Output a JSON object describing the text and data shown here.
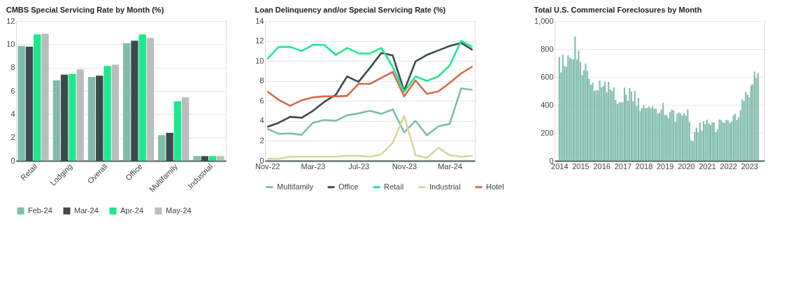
{
  "chart_data": [
    {
      "type": "bar",
      "title": "CMBS Special Servicing Rate by Month (%)",
      "categories": [
        "Retail",
        "Lodging",
        "Overall",
        "Office",
        "Multifamily",
        "Industrial"
      ],
      "series": [
        {
          "name": "Feb-24",
          "color": "#7fbcab",
          "values": [
            9.85,
            6.9,
            7.2,
            10.1,
            2.2,
            0.4
          ]
        },
        {
          "name": "Mar-24",
          "color": "#3d4a4d",
          "values": [
            9.8,
            7.4,
            7.3,
            10.3,
            2.4,
            0.4
          ]
        },
        {
          "name": "Apr-24",
          "color": "#1de88f",
          "values": [
            10.85,
            7.45,
            8.15,
            10.85,
            5.1,
            0.4
          ]
        },
        {
          "name": "May-24",
          "color": "#b9bdbb",
          "values": [
            10.9,
            7.85,
            8.25,
            10.55,
            5.45,
            0.4
          ]
        }
      ],
      "ylim": [
        0,
        12
      ],
      "yticks": [
        0,
        2,
        4,
        6,
        8,
        10,
        12
      ],
      "grid": "y",
      "legend": "bottom"
    },
    {
      "type": "line",
      "title": "Loan Delinquency and/or Special Servicing Rate (%)",
      "categories": [
        "Nov-22",
        null,
        null,
        null,
        "Mar-23",
        null,
        null,
        null,
        "Jul-23",
        null,
        null,
        null,
        "Nov-23",
        null,
        null,
        null,
        "Mar-24",
        null,
        null
      ],
      "series": [
        {
          "name": "Multifamily",
          "color": "#7fbcab",
          "values": [
            3.2,
            2.7,
            2.75,
            2.6,
            3.8,
            4.1,
            4.0,
            4.55,
            4.75,
            5.0,
            4.7,
            5.15,
            2.85,
            4.0,
            2.55,
            3.45,
            3.7,
            7.25,
            7.1
          ]
        },
        {
          "name": "Office",
          "color": "#3d4a4d",
          "values": [
            3.4,
            3.8,
            4.4,
            4.3,
            5.0,
            5.9,
            6.6,
            8.45,
            7.9,
            9.3,
            10.8,
            10.55,
            7.0,
            9.95,
            10.6,
            11.05,
            11.5,
            11.8,
            11.1
          ]
        },
        {
          "name": "Retail",
          "color": "#1de88f",
          "values": [
            10.2,
            11.4,
            11.4,
            11.0,
            11.6,
            11.6,
            10.6,
            11.3,
            10.75,
            10.75,
            11.3,
            9.4,
            6.9,
            8.45,
            8.0,
            8.45,
            9.55,
            12.0,
            11.4
          ]
        },
        {
          "name": "Industrial",
          "color": "#d9d59a",
          "values": [
            0.2,
            0.2,
            0.4,
            0.4,
            0.4,
            0.4,
            0.4,
            0.5,
            0.5,
            0.4,
            0.65,
            1.8,
            4.5,
            0.55,
            0.3,
            1.3,
            0.55,
            0.4,
            0.5
          ]
        },
        {
          "name": "Hotel",
          "color": "#d56a4a",
          "values": [
            6.95,
            6.1,
            5.5,
            6.05,
            6.35,
            6.45,
            6.45,
            6.5,
            7.7,
            7.7,
            8.3,
            8.9,
            6.45,
            8.05,
            6.7,
            6.95,
            7.8,
            8.75,
            9.45
          ]
        }
      ],
      "ylim": [
        0,
        14
      ],
      "yticks": [
        0,
        2,
        4,
        6,
        8,
        10,
        12,
        14
      ],
      "grid": "y",
      "legend": "bottom"
    },
    {
      "type": "bar",
      "title": "Total U.S. Commercial Foreclosures by Month",
      "x": [
        "2014-01",
        "2014-02",
        "2014-03",
        "2014-04",
        "2014-05",
        "2014-06",
        "2014-07",
        "2014-08",
        "2014-09",
        "2014-10",
        "2014-11",
        "2014-12",
        "2015-01",
        "2015-02",
        "2015-03",
        "2015-04",
        "2015-05",
        "2015-06",
        "2015-07",
        "2015-08",
        "2015-09",
        "2015-10",
        "2015-11",
        "2015-12",
        "2016-01",
        "2016-02",
        "2016-03",
        "2016-04",
        "2016-05",
        "2016-06",
        "2016-07",
        "2016-08",
        "2016-09",
        "2016-10",
        "2016-11",
        "2016-12",
        "2017-01",
        "2017-02",
        "2017-03",
        "2017-04",
        "2017-05",
        "2017-06",
        "2017-07",
        "2017-08",
        "2017-09",
        "2017-10",
        "2017-11",
        "2017-12",
        "2018-01",
        "2018-02",
        "2018-03",
        "2018-04",
        "2018-05",
        "2018-06",
        "2018-07",
        "2018-08",
        "2018-09",
        "2018-10",
        "2018-11",
        "2018-12",
        "2019-01",
        "2019-02",
        "2019-03",
        "2019-04",
        "2019-05",
        "2019-06",
        "2019-07",
        "2019-08",
        "2019-09",
        "2019-10",
        "2019-11",
        "2019-12",
        "2020-01",
        "2020-02",
        "2020-03",
        "2020-04",
        "2020-05",
        "2020-06",
        "2020-07",
        "2020-08",
        "2020-09",
        "2020-10",
        "2020-11",
        "2020-12",
        "2021-01",
        "2021-02",
        "2021-03",
        "2021-04",
        "2021-05",
        "2021-06",
        "2021-07",
        "2021-08",
        "2021-09",
        "2021-10",
        "2021-11",
        "2021-12",
        "2022-01",
        "2022-02",
        "2022-03",
        "2022-04",
        "2022-05",
        "2022-06",
        "2022-07",
        "2022-08",
        "2022-09",
        "2022-10",
        "2022-11",
        "2022-12",
        "2023-01",
        "2023-02",
        "2023-03",
        "2023-04",
        "2023-05",
        "2023-06"
      ],
      "color": "#7fbcab",
      "values": [
        743,
        632,
        759,
        677,
        672,
        755,
        737,
        728,
        726,
        890,
        723,
        789,
        707,
        612,
        650,
        696,
        642,
        586,
        544,
        559,
        499,
        507,
        502,
        574,
        526,
        534,
        565,
        490,
        565,
        511,
        499,
        525,
        435,
        405,
        417,
        420,
        417,
        523,
        472,
        430,
        520,
        495,
        427,
        499,
        391,
        450,
        356,
        376,
        395,
        376,
        379,
        389,
        376,
        391,
        371,
        371,
        337,
        344,
        367,
        415,
        329,
        326,
        304,
        349,
        367,
        361,
        278,
        337,
        346,
        337,
        323,
        341,
        323,
        367,
        277,
        146,
        141,
        205,
        236,
        203,
        274,
        214,
        283,
        262,
        293,
        266,
        256,
        274,
        274,
        205,
        224,
        296,
        292,
        274,
        271,
        293,
        289,
        269,
        281,
        323,
        335,
        292,
        311,
        362,
        439,
        427,
        493,
        472,
        454,
        540,
        547,
        638,
        592,
        627
      ],
      "xlim": [
        "2013-12-10",
        "2023-07-20"
      ],
      "xticks": [
        "2014",
        "2015",
        "2016",
        "2017",
        "2018",
        "2019",
        "2020",
        "2021",
        "2022",
        "2023"
      ],
      "ylim": [
        0,
        1000
      ],
      "yticks": [
        0,
        200,
        400,
        600,
        800,
        {
          "value": 1000,
          "label": "1,000"
        }
      ],
      "grid": "y"
    }
  ]
}
